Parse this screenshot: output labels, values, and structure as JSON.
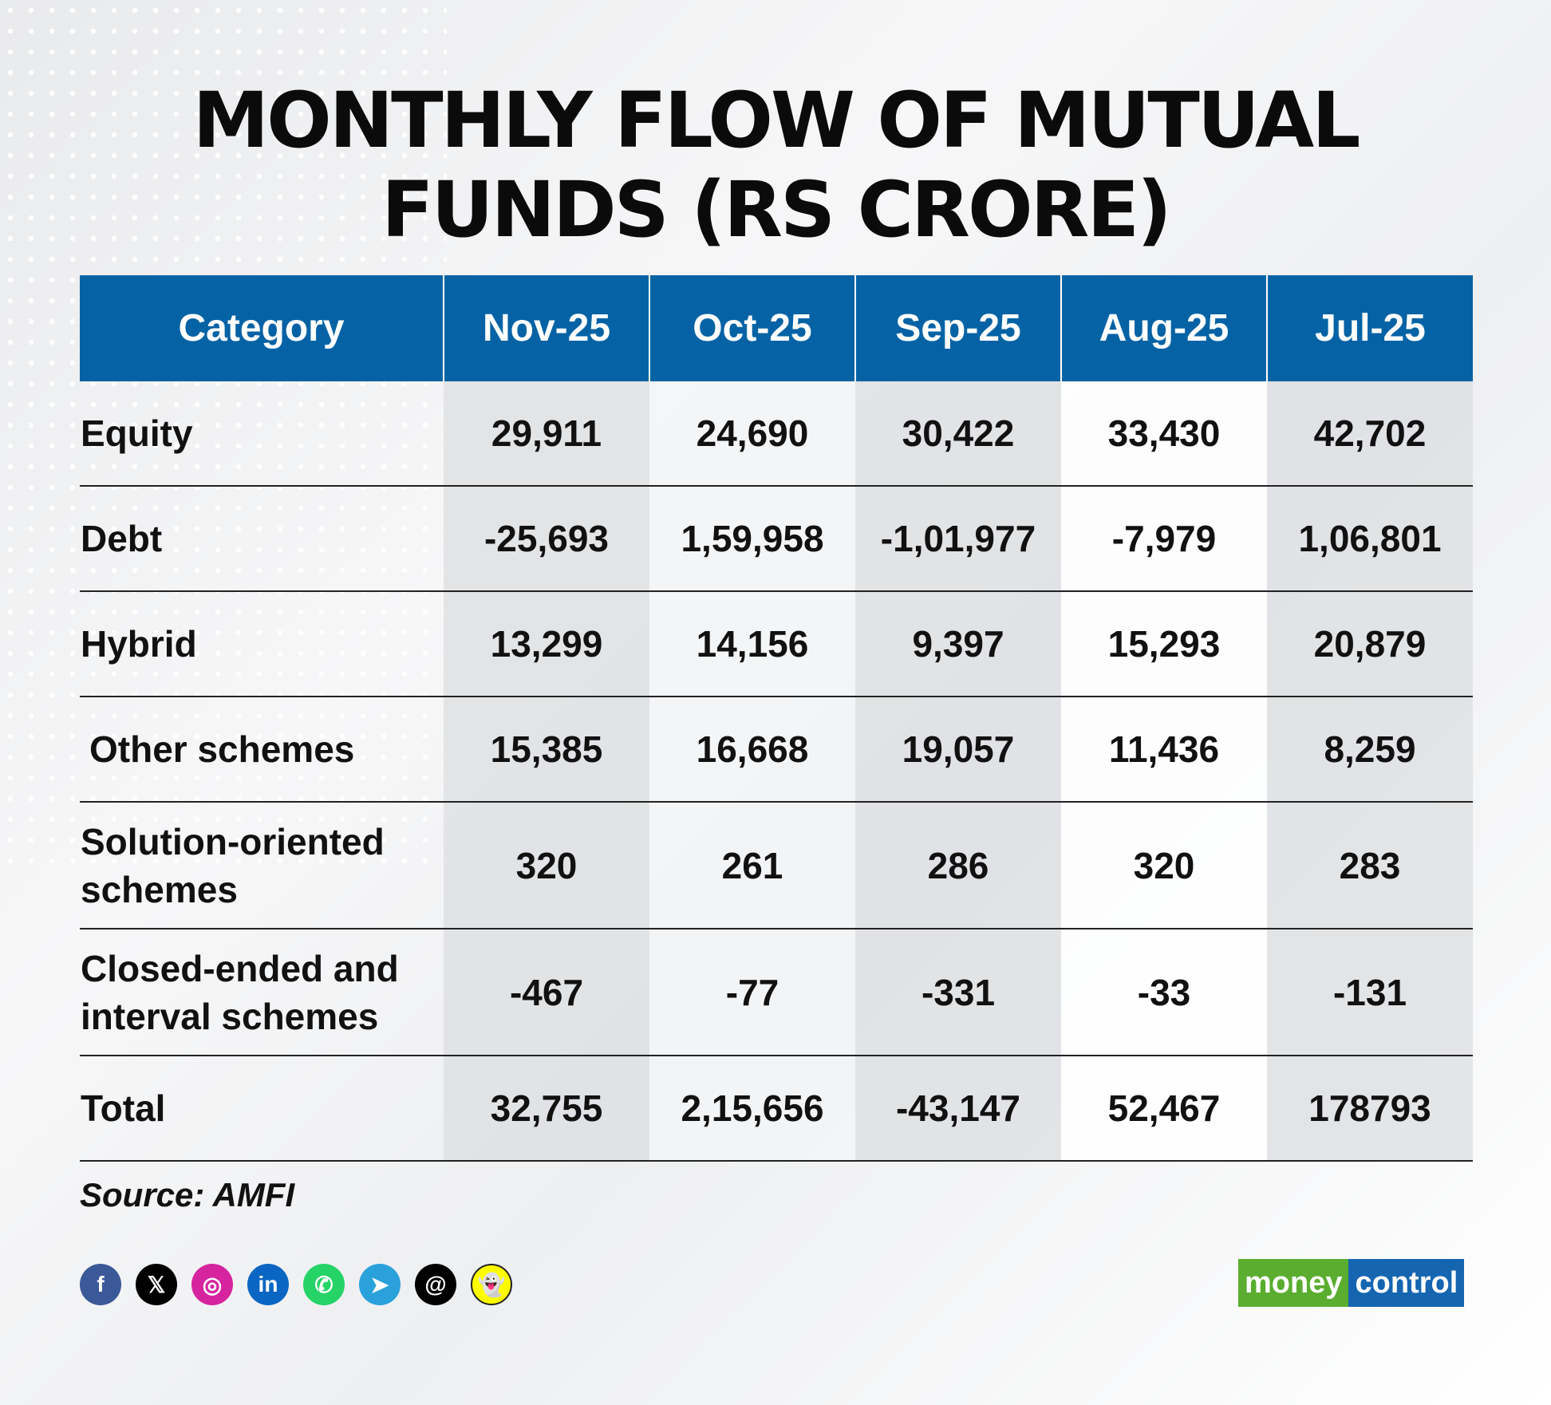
{
  "title": [
    "MONTHLY FLOW OF MUTUAL",
    "FUNDS (RS CRORE)"
  ],
  "table": {
    "headers": [
      "Category",
      "Nov-25",
      "Oct-25",
      "Sep-25",
      "Aug-25",
      "Jul-25"
    ],
    "rows": [
      [
        "Equity",
        "29,911",
        "24,690",
        "30,422",
        "33,430",
        "42,702"
      ],
      [
        "Debt",
        "-25,693",
        "1,59,958",
        "-1,01,977",
        "-7,979",
        "1,06,801"
      ],
      [
        "Hybrid",
        "13,299",
        "14,156",
        "9,397",
        "15,293",
        "20,879"
      ],
      [
        "Other schemes",
        "15,385",
        "16,668",
        "19,057",
        "11,436",
        "8,259"
      ],
      [
        "Solution-oriented schemes",
        "320",
        "261",
        "286",
        "320",
        "283"
      ],
      [
        "Closed-ended and interval schemes",
        "-467",
        "-77",
        "-331",
        "-33",
        "-131"
      ],
      [
        "Total",
        "32,755",
        "2,15,656",
        "-43,147",
        "52,467",
        "178793"
      ]
    ]
  },
  "source": "Source: AMFI",
  "social_icons": [
    {
      "name": "facebook",
      "glyph": "f",
      "color": "#3b5998"
    },
    {
      "name": "x",
      "glyph": "𝕏",
      "color": "#000000"
    },
    {
      "name": "instagram",
      "glyph": "◎",
      "color": "#d6249f"
    },
    {
      "name": "linkedin",
      "glyph": "in",
      "color": "#0a66c2"
    },
    {
      "name": "whatsapp",
      "glyph": "✆",
      "color": "#25d366"
    },
    {
      "name": "telegram",
      "glyph": "➤",
      "color": "#2aa1da"
    },
    {
      "name": "threads",
      "glyph": "@",
      "color": "#000000"
    },
    {
      "name": "snapchat",
      "glyph": "👻",
      "color": "#fffc00"
    }
  ],
  "logo": {
    "part1": "money",
    "part2": "control",
    "color1": "#5aad2f",
    "color2": "#1565b0"
  },
  "colors": {
    "header_bg": "#0563a5"
  }
}
